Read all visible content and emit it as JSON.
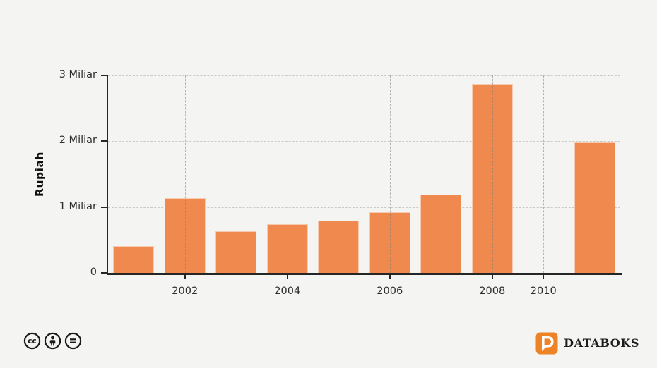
{
  "page": {
    "background": "#f4f4f2"
  },
  "chart_data": {
    "type": "bar",
    "title": "",
    "ylabel": "Rupiah",
    "xlabel": "",
    "categories": [
      "2001",
      "2002",
      "2003",
      "2004",
      "2005",
      "2006",
      "2007",
      "2008",
      "2010",
      "2011"
    ],
    "values": [
      0.41,
      1.14,
      0.63,
      0.74,
      0.79,
      0.92,
      1.19,
      2.87,
      0,
      1.98
    ],
    "ylim": [
      0,
      3
    ],
    "yticks": [
      {
        "value": 0,
        "label": "0"
      },
      {
        "value": 1,
        "label": "1 Miliar"
      },
      {
        "value": 2,
        "label": "2 Miliar"
      },
      {
        "value": 3,
        "label": "3 Miliar"
      }
    ],
    "xtick_labels": [
      "2002",
      "2004",
      "2006",
      "2008",
      "2010"
    ],
    "grid": "dashed, horizontal and vertical",
    "legend_position": "none",
    "bar_color": "#f0894e",
    "axis_color": "#262626",
    "grid_color": "#c9c9c7",
    "tick_text_color": "#2e2e2e"
  },
  "footer": {
    "license_icons": [
      {
        "name": "cc-icon",
        "glyph": "cc"
      },
      {
        "name": "attribution-icon",
        "glyph": "person"
      },
      {
        "name": "equal-icon",
        "glyph": "="
      }
    ],
    "brand_text": "DATABOKS",
    "brand_color": "#ee8227"
  }
}
